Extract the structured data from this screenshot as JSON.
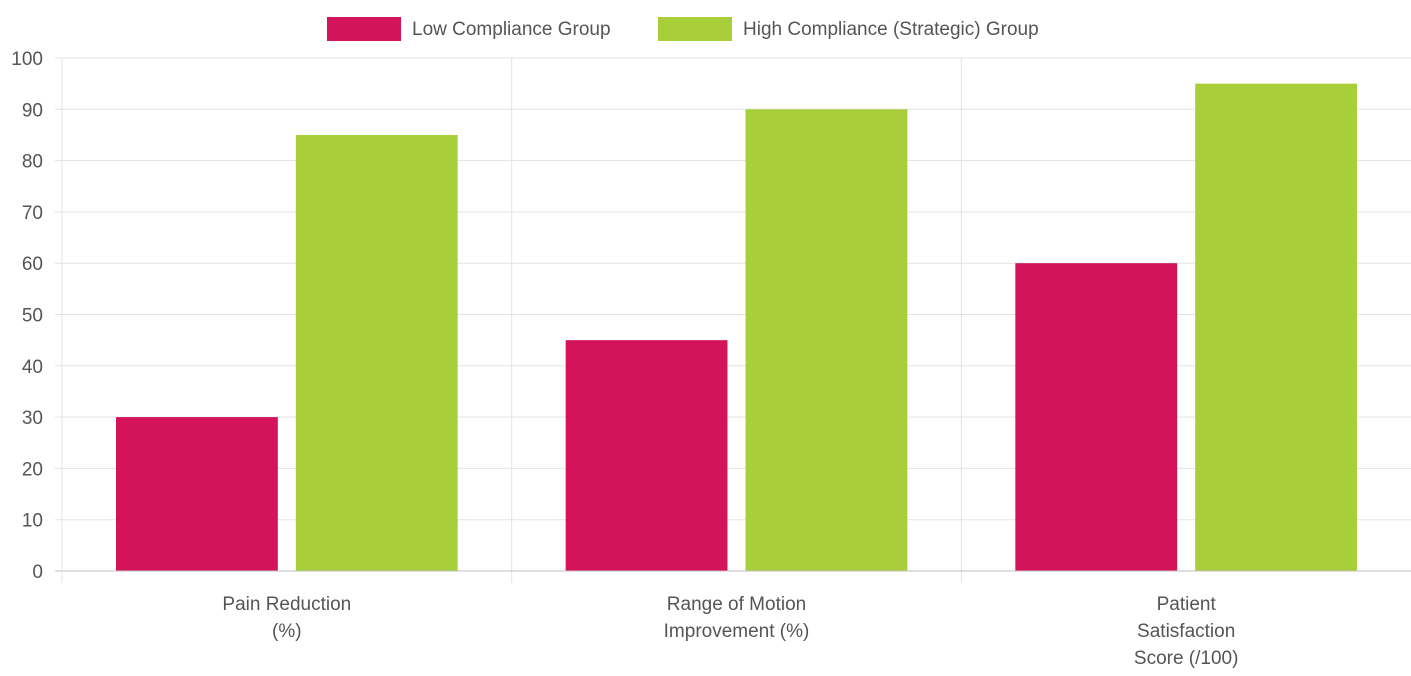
{
  "chart_data": {
    "type": "bar",
    "categories": [
      [
        "Pain Reduction",
        "(%)"
      ],
      [
        "Range of Motion",
        "Improvement (%)"
      ],
      [
        "Patient",
        "Satisfaction",
        "Score (/100)"
      ]
    ],
    "series": [
      {
        "name": "Low Compliance Group",
        "color": "#d4145a",
        "values": [
          30,
          45,
          60
        ]
      },
      {
        "name": "High Compliance (Strategic) Group",
        "color": "#a8cf3a",
        "values": [
          85,
          90,
          95
        ]
      }
    ],
    "ylim": [
      0,
      100
    ],
    "yticks": [
      0,
      10,
      20,
      30,
      40,
      50,
      60,
      70,
      80,
      90,
      100
    ],
    "grid": true,
    "legend_position": "top-center",
    "colors": {
      "grid": "#e3e3e3",
      "axis": "#bfbfbf",
      "text": "#555555"
    }
  }
}
